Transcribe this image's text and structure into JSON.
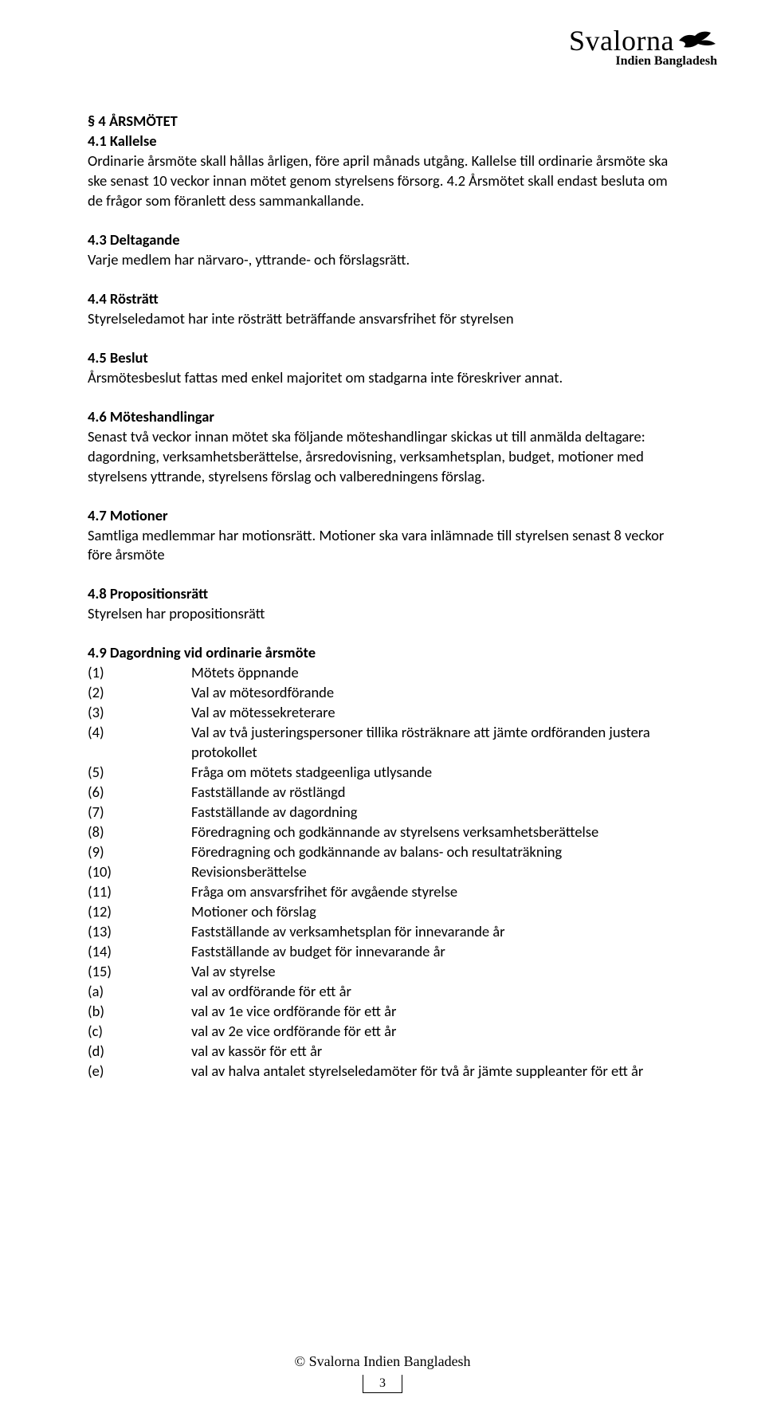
{
  "logo": {
    "main": "Svalorna",
    "sub": "Indien Bangladesh"
  },
  "sections": {
    "s4": {
      "title": "§ 4 ÅRSMÖTET",
      "s41_title": "4.1 Kallelse",
      "s41_body": "Ordinarie årsmöte skall hållas årligen, före april månads utgång. Kallelse till ordinarie årsmöte ska ske senast 10 veckor innan mötet genom styrelsens försorg. 4.2 Årsmötet skall endast besluta om de frågor som föranlett dess sammankallande.",
      "s43_title": "4.3 Deltagande",
      "s43_body": "Varje medlem har närvaro-, yttrande- och förslagsrätt.",
      "s44_title": "4.4 Rösträtt",
      "s44_body": "Styrelseledamot har inte rösträtt beträffande ansvarsfrihet för styrelsen",
      "s45_title": "4.5 Beslut",
      "s45_body": "Årsmötesbeslut fattas med enkel majoritet om stadgarna inte föreskriver annat.",
      "s46_title": "4.6 Möteshandlingar",
      "s46_body": "Senast två veckor innan mötet ska följande möteshandlingar skickas ut till anmälda deltagare: dagordning, verksamhetsberättelse, årsredovisning, verksamhetsplan, budget, motioner med styrelsens yttrande, styrelsens förslag och valberedningens förslag.",
      "s47_title": "4.7 Motioner",
      "s47_body": "Samtliga medlemmar har motionsrätt. Motioner ska vara inlämnade till styrelsen senast 8 veckor före årsmöte",
      "s48_title": "4.8 Propositionsrätt",
      "s48_body": "Styrelsen har propositionsrätt",
      "s49_title": "4.9 Dagordning vid ordinarie årsmöte",
      "agenda": [
        {
          "n": "(1)",
          "t": "Mötets öppnande"
        },
        {
          "n": "(2)",
          "t": "Val av mötesordförande"
        },
        {
          "n": "(3)",
          "t": "Val av mötessekreterare"
        },
        {
          "n": "(4)",
          "t": "Val av två justeringspersoner tillika rösträknare att jämte ordföranden justera protokollet"
        },
        {
          "n": "(5)",
          "t": "Fråga om mötets stadgeenliga utlysande"
        },
        {
          "n": "(6)",
          "t": "Fastställande av röstlängd"
        },
        {
          "n": "(7)",
          "t": "Fastställande av dagordning"
        },
        {
          "n": "(8)",
          "t": "Föredragning och godkännande av styrelsens verksamhetsberättelse"
        },
        {
          "n": "(9)",
          "t": "Föredragning och godkännande av balans- och resultaträkning"
        },
        {
          "n": "(10)",
          "t": "Revisionsberättelse"
        },
        {
          "n": "(11)",
          "t": "Fråga om ansvarsfrihet för avgående styrelse"
        },
        {
          "n": "(12)",
          "t": "Motioner och förslag"
        },
        {
          "n": "(13)",
          "t": "Fastställande av verksamhetsplan för innevarande år"
        },
        {
          "n": "(14)",
          "t": "Fastställande av budget för innevarande år"
        },
        {
          "n": "(15)",
          "t": "Val av styrelse"
        },
        {
          "n": "(a)",
          "t": "val av ordförande för ett år"
        },
        {
          "n": "(b)",
          "t": "val av 1e vice ordförande för ett år"
        },
        {
          "n": "(c)",
          "t": "val av 2e vice ordförande för ett år"
        },
        {
          "n": "(d)",
          "t": "val av kassör för ett år"
        },
        {
          "n": "(e)",
          "t": "val av halva antalet styrelseledamöter för två år jämte suppleanter för ett år"
        }
      ]
    }
  },
  "footer": {
    "copyright": "© Svalorna Indien Bangladesh",
    "page": "3"
  },
  "colors": {
    "text": "#000000",
    "background": "#ffffff"
  },
  "typography": {
    "body_fontsize": 18.5,
    "logo_main_fontsize": 36,
    "logo_sub_fontsize": 16
  }
}
